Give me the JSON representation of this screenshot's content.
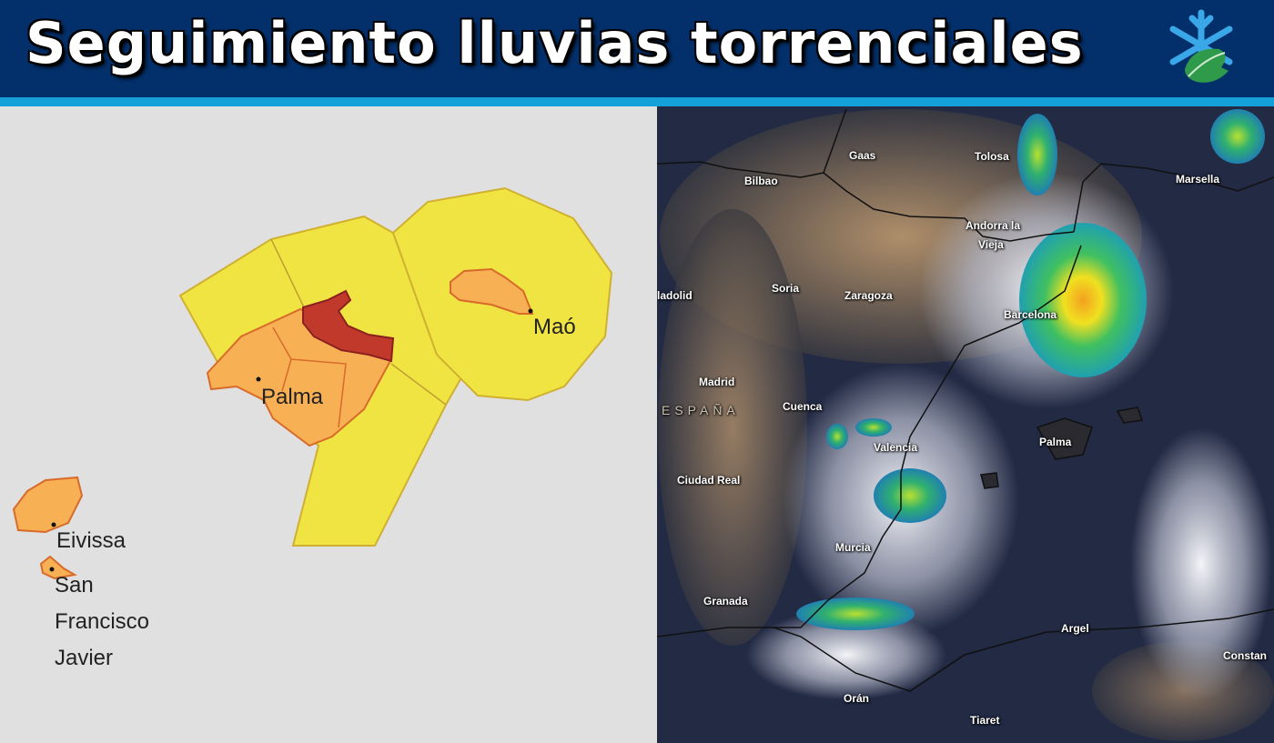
{
  "header": {
    "title": "Seguimiento lluvias torrenciales",
    "logo": "snowflake-leaf-logo"
  },
  "colors": {
    "header_bg": "#03306b",
    "accent_bar": "#14a0d8",
    "warning_yellow": "#f0e442",
    "warning_orange": "#f7b054",
    "warning_red": "#c0392b"
  },
  "warning_map": {
    "labels": {
      "mao": "Maó",
      "palma": "Palma",
      "eivissa": "Eivissa",
      "san": "San",
      "francisco": "Francisco",
      "javier": "Javier"
    }
  },
  "satellite_map": {
    "labels": {
      "gaas": "Gaas",
      "tolosa": "Tolosa",
      "marsella": "Marsella",
      "bilbao": "Bilbao",
      "andorra": "Andorra la",
      "vieja": "Vieja",
      "valladolid": "ladolid",
      "soria": "Soria",
      "zaragoza": "Zaragoza",
      "barcelona": "Barcelona",
      "madrid": "Madrid",
      "espana": "ESPAÑA",
      "cuenca": "Cuenca",
      "valencia": "Valencia",
      "palma": "Palma",
      "ciudad_real": "Ciudad Real",
      "murcia": "Murcia",
      "granada": "Granada",
      "argel": "Argel",
      "constantina": "Constan",
      "oran": "Orán",
      "tiaret": "Tiaret"
    }
  }
}
